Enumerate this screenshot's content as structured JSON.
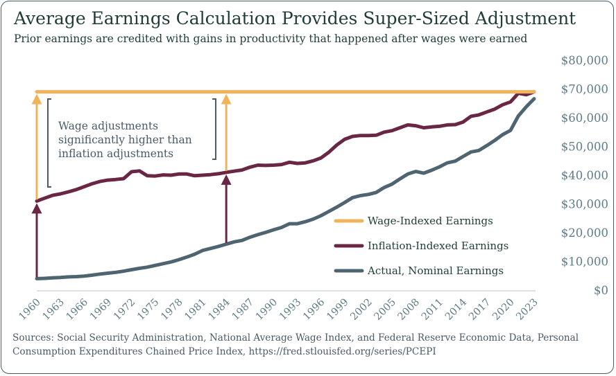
{
  "header": {
    "title": "Average Earnings Calculation Provides Super-Sized Adjustment",
    "subtitle": "Prior earnings are credited with gains in productivity that happened after wages were earned"
  },
  "footer": {
    "sources": "Sources: Social Security Administration, National Average Wage Index, and Federal Reserve Economic Data, Personal Consumption Expenditures Chained Price Index, https://fred.stlouisfed.org/series/PCEPI"
  },
  "annotation": {
    "lines": [
      "Wage adjustments",
      "significantly higher than",
      "inflation adjustments"
    ]
  },
  "colors": {
    "wage": "#F0B35A",
    "inflation": "#6A2745",
    "nominal": "#4E6470",
    "axis_text": "#5f7c86"
  },
  "chart_data": {
    "type": "line",
    "title": "Average Earnings Calculation Provides Super-Sized Adjustment",
    "xlabel": "",
    "ylabel": "",
    "xlim": [
      1960,
      2023
    ],
    "ylim": [
      0,
      80000
    ],
    "y_ticks": [
      0,
      10000,
      20000,
      30000,
      40000,
      50000,
      60000,
      70000,
      80000
    ],
    "y_tick_labels": [
      "$0",
      "$10,000",
      "$20,000",
      "$30,000",
      "$40,000",
      "$50,000",
      "$60,000",
      "$70,000",
      "$80,000"
    ],
    "x_ticks": [
      1960,
      1963,
      1966,
      1969,
      1972,
      1975,
      1978,
      1981,
      1984,
      1987,
      1990,
      1993,
      1996,
      1999,
      2002,
      2005,
      2008,
      2011,
      2014,
      2017,
      2020,
      2023
    ],
    "x_tick_labels": [
      "1960",
      "1963",
      "1966",
      "1969",
      "1972",
      "1975",
      "1978",
      "1981",
      "1984",
      "1987",
      "1990",
      "1993",
      "1996",
      "1999",
      "2002",
      "2005",
      "2008",
      "2011",
      "2014",
      "2017",
      "2020",
      "2023"
    ],
    "legend_position": "center-right",
    "grid": false,
    "series": [
      {
        "name": "Wage-Indexed Earnings",
        "key": "wage",
        "x": [
          1960,
          2023
        ],
        "values": [
          69000,
          69000
        ]
      },
      {
        "name": "Inflation-Indexed Earnings",
        "key": "inflation",
        "x": [
          1960,
          1961,
          1962,
          1963,
          1964,
          1965,
          1966,
          1967,
          1968,
          1969,
          1970,
          1971,
          1972,
          1973,
          1974,
          1975,
          1976,
          1977,
          1978,
          1979,
          1980,
          1981,
          1982,
          1983,
          1984,
          1985,
          1986,
          1987,
          1988,
          1989,
          1990,
          1991,
          1992,
          1993,
          1994,
          1995,
          1996,
          1997,
          1998,
          1999,
          2000,
          2001,
          2002,
          2003,
          2004,
          2005,
          2006,
          2007,
          2008,
          2009,
          2010,
          2011,
          2012,
          2013,
          2014,
          2015,
          2016,
          2017,
          2018,
          2019,
          2020,
          2021,
          2022,
          2023
        ],
        "values": [
          31000,
          32000,
          33000,
          33500,
          34200,
          35000,
          36000,
          37000,
          37800,
          38300,
          38500,
          38800,
          41200,
          41500,
          39800,
          39700,
          40100,
          40000,
          40400,
          40400,
          39800,
          40000,
          40200,
          40500,
          41000,
          41400,
          41800,
          42800,
          43500,
          43400,
          43500,
          43700,
          44500,
          44100,
          44300,
          45000,
          46000,
          48000,
          50500,
          52500,
          53500,
          53800,
          53800,
          53900,
          55000,
          55500,
          56500,
          57500,
          57200,
          56500,
          56800,
          57000,
          57500,
          57600,
          58500,
          60500,
          61000,
          62000,
          63000,
          64500,
          65500,
          68500,
          68000,
          69000
        ]
      },
      {
        "name": "Actual, Nominal Earnings",
        "key": "nominal",
        "x": [
          1960,
          1961,
          1962,
          1963,
          1964,
          1965,
          1966,
          1967,
          1968,
          1969,
          1970,
          1971,
          1972,
          1973,
          1974,
          1975,
          1976,
          1977,
          1978,
          1979,
          1980,
          1981,
          1982,
          1983,
          1984,
          1985,
          1986,
          1987,
          1988,
          1989,
          1990,
          1991,
          1992,
          1993,
          1994,
          1995,
          1996,
          1997,
          1998,
          1999,
          2000,
          2001,
          2002,
          2003,
          2004,
          2005,
          2006,
          2007,
          2008,
          2009,
          2010,
          2011,
          2012,
          2013,
          2014,
          2015,
          2016,
          2017,
          2018,
          2019,
          2020,
          2021,
          2022,
          2023
        ],
        "values": [
          4000,
          4100,
          4300,
          4400,
          4600,
          4700,
          4900,
          5200,
          5600,
          5900,
          6200,
          6600,
          7100,
          7600,
          8000,
          8600,
          9200,
          9800,
          10600,
          11500,
          12500,
          13800,
          14500,
          15200,
          16000,
          16800,
          17300,
          18400,
          19300,
          20100,
          21000,
          21800,
          23100,
          23100,
          23800,
          24700,
          25900,
          27400,
          28900,
          30500,
          32200,
          32900,
          33300,
          34000,
          35700,
          36900,
          38700,
          40400,
          41300,
          40700,
          41700,
          42900,
          44300,
          44900,
          46500,
          48100,
          48600,
          50300,
          52100,
          54100,
          55600,
          60600,
          63800,
          66600
        ]
      }
    ],
    "annotations": [
      {
        "type": "arrow",
        "x": 1960,
        "from": 31000,
        "to": 69000,
        "series": "wage"
      },
      {
        "type": "arrow",
        "x": 1960,
        "from": 4000,
        "to": 31000,
        "series": "inflation"
      },
      {
        "type": "arrow",
        "x": 1984,
        "from": 41000,
        "to": 69000,
        "series": "wage"
      },
      {
        "type": "arrow",
        "x": 1984,
        "from": 16000,
        "to": 41000,
        "series": "inflation"
      }
    ]
  }
}
